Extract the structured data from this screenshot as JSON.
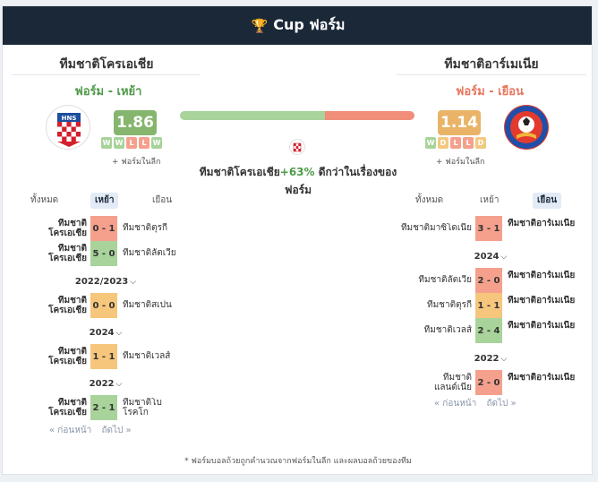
{
  "header": {
    "title": "Cup ฟอร์ม",
    "icon": "trophy-icon"
  },
  "left_team": {
    "name": "ทีมชาติโครเอเชีย",
    "form_label": "ฟอร์ม - เหย้า",
    "rating": "1.86",
    "rating_color": "#86b56e",
    "form": [
      "W",
      "W",
      "L",
      "L",
      "W"
    ],
    "note": "+ ฟอร์มในลีก"
  },
  "right_team": {
    "name": "ทีมชาติอาร์เมเนีย",
    "form_label": "ฟอร์ม - เยือน",
    "rating": "1.14",
    "rating_color": "#e9b467",
    "form": [
      "W",
      "D",
      "L",
      "L",
      "D"
    ],
    "note": "+ ฟอร์มในลีก"
  },
  "comparison": {
    "left_share": 0.62,
    "text_before": "ทีมชาติโครเอเชีย",
    "percent": "+63%",
    "text_after": " ดีกว่าในเรื่องของ",
    "text_end": "ฟอร์ม"
  },
  "left_tabs": [
    "ทั้งหมด",
    "เหย้า",
    "เยือน"
  ],
  "right_tabs": [
    "ทั้งหมด",
    "เหย้า",
    "เยือน"
  ],
  "left_matches": [
    {
      "home": "ทีมชาติโครเอเชีย",
      "score": "0 - 1",
      "result": "L",
      "away": "ทีมชาติตุรกี"
    },
    {
      "home": "ทีมชาติโครเอเชีย",
      "score": "5 - 0",
      "result": "W",
      "away": "ทีมชาติลัตเวีย"
    },
    {
      "year": "2022/2023"
    },
    {
      "home": "ทีมชาติโครเอเชีย",
      "score": "0 - 0",
      "result": "D",
      "away": "ทีมชาติสเปน"
    },
    {
      "year": "2024"
    },
    {
      "home": "ทีมชาติโครเอเชีย",
      "score": "1 - 1",
      "result": "D",
      "away": "ทีมชาติเวลส์"
    },
    {
      "year": "2022"
    },
    {
      "home": "ทีมชาติโครเอเชีย",
      "score": "2 - 1",
      "result": "W",
      "away": "ทีมชาติโบโรคโก"
    }
  ],
  "right_matches": [
    {
      "home": "ทีมชาติมาซิโดเนีย",
      "score": "3 - 1",
      "result": "L",
      "away": "ทีมชาติอาร์เมเนีย"
    },
    {
      "year": "2024"
    },
    {
      "home": "ทีมชาติลัตเวีย",
      "score": "2 - 0",
      "result": "L",
      "away": "ทีมชาติอาร์เมเนีย"
    },
    {
      "home": "ทีมชาติตุรกี",
      "score": "1 - 1",
      "result": "D",
      "away": "ทีมชาติอาร์เมเนีย"
    },
    {
      "home": "ทีมชาติเวลส์",
      "score": "2 - 4",
      "result": "W",
      "away": "ทีมชาติอาร์เมเนีย"
    },
    {
      "year": "2022"
    },
    {
      "home": "ทีมชาติแลนด์เนีย",
      "score": "2 - 0",
      "result": "L",
      "away": "ทีมชาติอาร์เมเนีย"
    }
  ],
  "pager": {
    "prev": "« ก่อนหน้า",
    "next": "ถัดไป »"
  },
  "footnote": "* ฟอร์มบอลถ้วยถูกคำนวณจากฟอร์มในลีก และผลบอลถ้วยของทีม"
}
